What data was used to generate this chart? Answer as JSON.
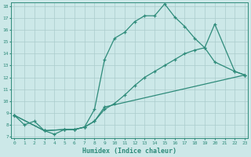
{
  "xlabel": "Humidex (Indice chaleur)",
  "xlim": [
    0,
    23
  ],
  "ylim": [
    7,
    18
  ],
  "yticks": [
    7,
    8,
    9,
    10,
    11,
    12,
    13,
    14,
    15,
    16,
    17,
    18
  ],
  "xticks": [
    0,
    1,
    2,
    3,
    4,
    5,
    6,
    7,
    8,
    9,
    10,
    11,
    12,
    13,
    14,
    15,
    16,
    17,
    18,
    19,
    20,
    21,
    22,
    23
  ],
  "line_color": "#2e8b7a",
  "bg_color": "#cce8e8",
  "grid_color": "#aacccc",
  "line1_x": [
    0,
    1,
    2,
    3,
    4,
    5,
    6,
    7,
    8,
    9,
    10,
    11,
    12,
    13,
    14,
    15,
    16,
    17,
    18,
    19,
    20,
    22,
    23
  ],
  "line1_y": [
    8.8,
    8.0,
    8.3,
    7.5,
    7.2,
    7.6,
    7.6,
    7.8,
    9.3,
    13.5,
    15.3,
    15.8,
    16.7,
    17.2,
    17.2,
    18.2,
    17.1,
    16.3,
    15.3,
    14.5,
    16.5,
    12.5,
    12.2
  ],
  "line2_x": [
    0,
    3,
    5,
    6,
    7,
    8,
    9,
    10,
    11,
    12,
    13,
    14,
    15,
    16,
    17,
    18,
    19,
    20,
    22,
    23
  ],
  "line2_y": [
    8.8,
    7.5,
    7.6,
    7.6,
    7.8,
    8.3,
    9.3,
    9.8,
    10.5,
    11.3,
    12.0,
    12.5,
    13.0,
    13.5,
    14.0,
    14.3,
    14.5,
    13.3,
    12.5,
    12.2
  ],
  "line3_x": [
    0,
    3,
    5,
    6,
    7,
    8,
    9,
    23
  ],
  "line3_y": [
    8.8,
    7.5,
    7.6,
    7.6,
    7.8,
    8.3,
    9.5,
    12.2
  ]
}
